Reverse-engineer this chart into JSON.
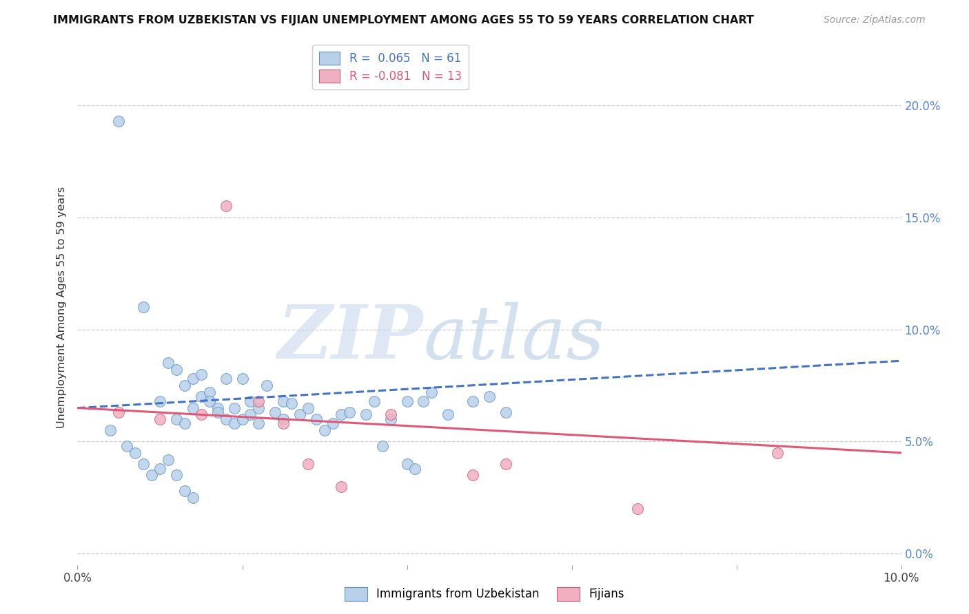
{
  "title": "IMMIGRANTS FROM UZBEKISTAN VS FIJIAN UNEMPLOYMENT AMONG AGES 55 TO 59 YEARS CORRELATION CHART",
  "source": "Source: ZipAtlas.com",
  "ylabel": "Unemployment Among Ages 55 to 59 years",
  "xlim": [
    0.0,
    0.1
  ],
  "ylim": [
    -0.005,
    0.225
  ],
  "yticks": [
    0.0,
    0.05,
    0.1,
    0.15,
    0.2
  ],
  "ytick_labels_right": [
    "0.0%",
    "5.0%",
    "10.0%",
    "15.0%",
    "20.0%"
  ],
  "xticks": [
    0.0,
    0.02,
    0.04,
    0.06,
    0.08,
    0.1
  ],
  "xtick_labels": [
    "0.0%",
    "",
    "",
    "",
    "",
    "10.0%"
  ],
  "blue_R": 0.065,
  "blue_N": 61,
  "pink_R": -0.081,
  "pink_N": 13,
  "blue_color": "#b8d0e8",
  "blue_edge_color": "#6090c8",
  "pink_color": "#f0b0c0",
  "pink_edge_color": "#d05878",
  "blue_line_color": "#4472c4",
  "pink_line_color": "#e05878",
  "watermark": "ZIPatlas",
  "watermark_color": "#d0dff0",
  "legend_blue_label": "Immigrants from Uzbekistan",
  "legend_pink_label": "Fijians",
  "blue_trend_y_start": 0.065,
  "blue_trend_y_end": 0.086,
  "pink_trend_y_start": 0.065,
  "pink_trend_y_end": 0.045,
  "blue_scatter_x": [
    0.005,
    0.008,
    0.01,
    0.011,
    0.012,
    0.012,
    0.013,
    0.013,
    0.014,
    0.014,
    0.015,
    0.015,
    0.016,
    0.016,
    0.017,
    0.017,
    0.018,
    0.018,
    0.019,
    0.019,
    0.02,
    0.02,
    0.021,
    0.021,
    0.022,
    0.022,
    0.023,
    0.024,
    0.025,
    0.025,
    0.026,
    0.027,
    0.028,
    0.029,
    0.03,
    0.031,
    0.032,
    0.033,
    0.035,
    0.036,
    0.037,
    0.038,
    0.04,
    0.041,
    0.042,
    0.043,
    0.045,
    0.048,
    0.05,
    0.052,
    0.004,
    0.006,
    0.007,
    0.008,
    0.009,
    0.01,
    0.011,
    0.012,
    0.013,
    0.014,
    0.04
  ],
  "blue_scatter_y": [
    0.193,
    0.11,
    0.068,
    0.085,
    0.082,
    0.06,
    0.075,
    0.058,
    0.078,
    0.065,
    0.08,
    0.07,
    0.072,
    0.068,
    0.065,
    0.063,
    0.078,
    0.06,
    0.065,
    0.058,
    0.078,
    0.06,
    0.068,
    0.062,
    0.065,
    0.058,
    0.075,
    0.063,
    0.068,
    0.06,
    0.067,
    0.062,
    0.065,
    0.06,
    0.055,
    0.058,
    0.062,
    0.063,
    0.062,
    0.068,
    0.048,
    0.06,
    0.04,
    0.038,
    0.068,
    0.072,
    0.062,
    0.068,
    0.07,
    0.063,
    0.055,
    0.048,
    0.045,
    0.04,
    0.035,
    0.038,
    0.042,
    0.035,
    0.028,
    0.025,
    0.068
  ],
  "pink_scatter_x": [
    0.005,
    0.01,
    0.015,
    0.018,
    0.022,
    0.025,
    0.028,
    0.032,
    0.038,
    0.048,
    0.052,
    0.068,
    0.085
  ],
  "pink_scatter_y": [
    0.063,
    0.06,
    0.062,
    0.155,
    0.068,
    0.058,
    0.04,
    0.03,
    0.062,
    0.035,
    0.04,
    0.02,
    0.045
  ]
}
